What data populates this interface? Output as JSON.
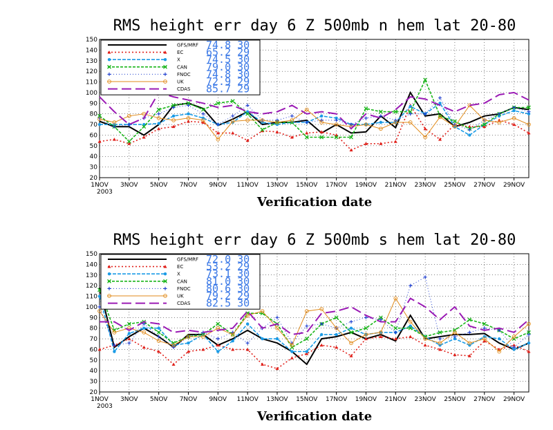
{
  "chart_data": [
    {
      "type": "line",
      "title": "RMS height err   day 6  Z 500mb  n hem  lat 20-80",
      "xlabel": "Verification date",
      "ylabel": "",
      "ylim": [
        20,
        150
      ],
      "yticks": [
        20,
        30,
        40,
        50,
        60,
        70,
        80,
        90,
        100,
        110,
        120,
        130,
        140,
        150
      ],
      "xtick_labels": [
        "1NOV",
        "3NOV",
        "5NOV",
        "7NOV",
        "9NOV",
        "11NOV",
        "13NOV",
        "15NOV",
        "17NOV",
        "19NOV",
        "21NOV",
        "23NOV",
        "25NOV",
        "27NOV",
        "29NOV"
      ],
      "xtick_year": "2003",
      "grid": true,
      "legend_position": "top-left",
      "series": [
        {
          "name": "GFS/MRF",
          "legend_value": "74.8 30",
          "color": "#000000",
          "values": [
            73,
            68,
            68,
            60,
            70,
            88,
            90,
            85,
            69,
            75,
            82,
            70,
            72,
            72,
            74,
            62,
            70,
            62,
            63,
            78,
            67,
            100,
            78,
            80,
            68,
            72,
            78,
            80,
            86,
            84
          ]
        },
        {
          "name": "EC",
          "legend_value": "65.2 29",
          "color": "#e0201a",
          "values": [
            54,
            56,
            52,
            58,
            66,
            68,
            73,
            72,
            62,
            62,
            55,
            64,
            63,
            58,
            62,
            63,
            60,
            46,
            52,
            52,
            54,
            88,
            66,
            56,
            70,
            68,
            68,
            74,
            70,
            62
          ]
        },
        {
          "name": "X",
          "legend_value": "74.5 30",
          "color": "#1a9be6",
          "values": [
            70,
            70,
            70,
            70,
            71,
            78,
            80,
            76,
            70,
            72,
            82,
            72,
            70,
            72,
            72,
            78,
            76,
            70,
            70,
            72,
            72,
            87,
            80,
            90,
            68,
            60,
            70,
            78,
            83,
            80
          ]
        },
        {
          "name": "CAN",
          "legend_value": "79.0 30",
          "color": "#19b519",
          "values": [
            78,
            68,
            54,
            68,
            84,
            88,
            90,
            84,
            90,
            92,
            80,
            65,
            72,
            72,
            58,
            58,
            58,
            58,
            85,
            82,
            82,
            82,
            112,
            78,
            73,
            66,
            70,
            80,
            86,
            86
          ]
        },
        {
          "name": "FNOC",
          "legend_value": "74.8 30",
          "color": "#1a3acd",
          "values": [
            76,
            68,
            70,
            76,
            80,
            86,
            88,
            80,
            70,
            78,
            88,
            74,
            74,
            78,
            72,
            74,
            74,
            70,
            76,
            78,
            74,
            80,
            80,
            95,
            70,
            65,
            74,
            80,
            86,
            82
          ]
        },
        {
          "name": "UK",
          "legend_value": "72.9 29",
          "color": "#e08a1a",
          "values": [
            75,
            72,
            78,
            80,
            76,
            74,
            76,
            74,
            56,
            73,
            74,
            74,
            72,
            74,
            84,
            72,
            70,
            68,
            70,
            66,
            72,
            72,
            58,
            77,
            68,
            88,
            74,
            72,
            76,
            70
          ]
        },
        {
          "name": "CDAS",
          "legend_value": "85.7 29",
          "color": "#9a1ab4",
          "values": [
            96,
            82,
            70,
            76,
            100,
            96,
            93,
            90,
            86,
            88,
            82,
            80,
            82,
            88,
            80,
            82,
            80,
            66,
            80,
            76,
            84,
            96,
            94,
            88,
            82,
            88,
            90,
            98,
            100,
            93
          ]
        }
      ]
    },
    {
      "type": "line",
      "title": "RMS height err   day 6  Z 500mb  s hem  lat 20-80",
      "xlabel": "Verification date",
      "ylabel": "",
      "ylim": [
        20,
        150
      ],
      "yticks": [
        20,
        30,
        40,
        50,
        60,
        70,
        80,
        90,
        100,
        110,
        120,
        130,
        140,
        150
      ],
      "xtick_labels": [
        "1NOV",
        "3NOV",
        "5NOV",
        "7NOV",
        "9NOV",
        "11NOV",
        "13NOV",
        "15NOV",
        "17NOV",
        "19NOV",
        "21NOV",
        "23NOV",
        "25NOV",
        "27NOV",
        "29NOV"
      ],
      "xtick_year": "2003",
      "grid": true,
      "legend_position": "top-left",
      "series": [
        {
          "name": "GFS/MRF",
          "legend_value": "72.0 30",
          "color": "#000000",
          "values": [
            118,
            62,
            72,
            80,
            72,
            62,
            74,
            74,
            64,
            70,
            78,
            70,
            66,
            58,
            46,
            70,
            72,
            76,
            70,
            74,
            68,
            92,
            70,
            72,
            74,
            74,
            75,
            66,
            60,
            66
          ]
        },
        {
          "name": "EC",
          "legend_value": "53.2 29",
          "color": "#e0201a",
          "values": [
            60,
            64,
            70,
            62,
            58,
            46,
            58,
            60,
            64,
            60,
            60,
            46,
            42,
            52,
            56,
            64,
            62,
            54,
            70,
            72,
            70,
            72,
            64,
            60,
            55,
            54,
            68,
            60,
            64,
            58
          ]
        },
        {
          "name": "X",
          "legend_value": "73.1 30",
          "color": "#1a9be6",
          "values": [
            110,
            58,
            75,
            80,
            80,
            64,
            66,
            74,
            58,
            68,
            84,
            70,
            70,
            58,
            58,
            74,
            74,
            80,
            74,
            76,
            76,
            82,
            72,
            64,
            70,
            64,
            72,
            70,
            60,
            66
          ]
        },
        {
          "name": "CAN",
          "legend_value": "81.0 30",
          "color": "#19b519",
          "values": [
            116,
            78,
            84,
            86,
            76,
            66,
            72,
            74,
            84,
            74,
            94,
            94,
            84,
            62,
            70,
            84,
            90,
            76,
            80,
            90,
            80,
            80,
            72,
            76,
            78,
            88,
            84,
            78,
            70,
            76
          ]
        },
        {
          "name": "FNOC",
          "legend_value": "80.6 30",
          "color": "#1a3acd",
          "values": [
            100,
            64,
            66,
            84,
            72,
            62,
            72,
            76,
            70,
            76,
            66,
            80,
            90,
            66,
            82,
            84,
            80,
            86,
            90,
            88,
            76,
            120,
            128,
            70,
            72,
            76,
            80,
            78,
            62,
            74
          ]
        },
        {
          "name": "UK",
          "legend_value": "79.2 29",
          "color": "#e08a1a",
          "values": [
            96,
            76,
            80,
            76,
            68,
            64,
            72,
            72,
            80,
            74,
            92,
            96,
            80,
            64,
            96,
            98,
            80,
            66,
            74,
            76,
            108,
            86,
            70,
            66,
            76,
            66,
            70,
            58,
            72,
            84
          ]
        },
        {
          "name": "CDAS",
          "legend_value": "82.5 30",
          "color": "#9a1ab4",
          "values": [
            86,
            86,
            78,
            86,
            84,
            76,
            78,
            76,
            78,
            80,
            96,
            80,
            84,
            74,
            76,
            94,
            96,
            100,
            92,
            86,
            86,
            108,
            100,
            88,
            100,
            82,
            78,
            80,
            76,
            88
          ]
        }
      ]
    }
  ]
}
